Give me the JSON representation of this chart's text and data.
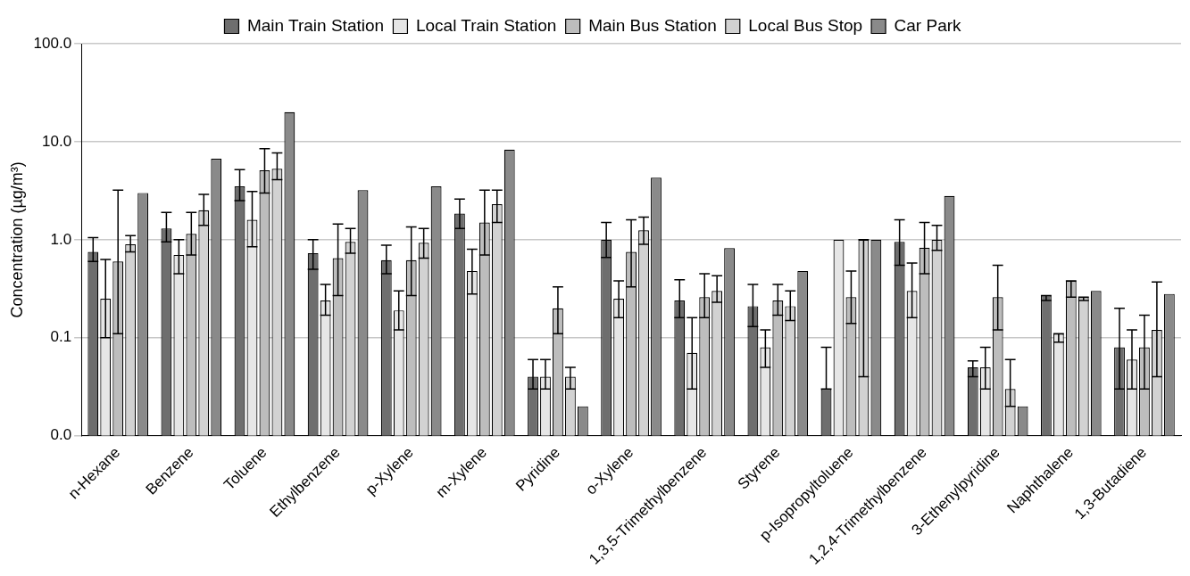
{
  "chart_data": {
    "type": "bar",
    "ylabel": "Concentration (µg/m³)",
    "categories": [
      "n-Hexane",
      "Benzene",
      "Toluene",
      "Ethylbenzene",
      "p-Xylene",
      "m-Xylene",
      "Pyridine",
      "o-Xylene",
      "1,3,5-Trimethylbenzene",
      "Styrene",
      "p-Isopropyltoluene",
      "1,2,4-Trimethylbenzene",
      "3-Ethenylpyridine",
      "Naphthalene",
      "1,3-Butadiene"
    ],
    "series": [
      {
        "name": "Main Train Station",
        "color": "#6e6e6e",
        "values": [
          0.75,
          1.3,
          3.5,
          0.73,
          0.62,
          1.85,
          0.04,
          1.0,
          0.24,
          0.21,
          0.03,
          0.95,
          0.05,
          0.27,
          0.08
        ],
        "errors": [
          [
            0.6,
            1.05
          ],
          [
            0.95,
            1.9
          ],
          [
            2.5,
            5.2
          ],
          [
            0.5,
            1.0
          ],
          [
            0.45,
            0.88
          ],
          [
            1.3,
            2.6
          ],
          [
            0.03,
            0.06
          ],
          [
            0.66,
            1.5
          ],
          [
            0.16,
            0.39
          ],
          [
            0.13,
            0.35
          ],
          [
            0.03,
            0.08
          ],
          [
            0.55,
            1.6
          ],
          [
            0.04,
            0.058
          ],
          [
            0.24,
            0.27
          ],
          [
            0.03,
            0.2
          ]
        ]
      },
      {
        "name": "Local Train Station",
        "color": "#e6e6e6",
        "values": [
          0.25,
          0.7,
          1.6,
          0.24,
          0.19,
          0.48,
          0.04,
          0.25,
          0.07,
          0.08,
          1.0,
          0.3,
          0.05,
          0.11,
          0.06
        ],
        "errors": [
          [
            0.1,
            0.63
          ],
          [
            0.45,
            1.0
          ],
          [
            0.85,
            3.1
          ],
          [
            0.17,
            0.35
          ],
          [
            0.12,
            0.3
          ],
          [
            0.28,
            0.8
          ],
          [
            0.03,
            0.06
          ],
          [
            0.16,
            0.38
          ],
          [
            0.03,
            0.16
          ],
          [
            0.05,
            0.12
          ],
          null,
          [
            0.16,
            0.58
          ],
          [
            0.03,
            0.08
          ],
          [
            0.09,
            0.11
          ],
          [
            0.03,
            0.12
          ]
        ]
      },
      {
        "name": "Main Bus Station",
        "color": "#bdbdbd",
        "values": [
          0.6,
          1.15,
          5.1,
          0.65,
          0.62,
          1.5,
          0.2,
          0.75,
          0.26,
          0.24,
          0.26,
          0.83,
          0.26,
          0.38,
          0.08
        ],
        "errors": [
          [
            0.11,
            3.2
          ],
          [
            0.7,
            1.9
          ],
          [
            3.0,
            8.5
          ],
          [
            0.27,
            1.45
          ],
          [
            0.27,
            1.35
          ],
          [
            0.7,
            3.2
          ],
          [
            0.11,
            0.33
          ],
          [
            0.33,
            1.6
          ],
          [
            0.16,
            0.45
          ],
          [
            0.17,
            0.35
          ],
          [
            0.14,
            0.48
          ],
          [
            0.45,
            1.5
          ],
          [
            0.12,
            0.55
          ],
          [
            0.26,
            0.38
          ],
          [
            0.03,
            0.17
          ]
        ]
      },
      {
        "name": "Local Bus Stop",
        "color": "#d2d2d2",
        "values": [
          0.9,
          2.0,
          5.3,
          0.95,
          0.93,
          2.3,
          0.04,
          1.25,
          0.3,
          0.21,
          1.0,
          1.0,
          0.03,
          0.26,
          0.12
        ],
        "errors": [
          [
            0.75,
            1.1
          ],
          [
            1.4,
            2.9
          ],
          [
            4.1,
            7.7
          ],
          [
            0.73,
            1.3
          ],
          [
            0.65,
            1.3
          ],
          [
            1.5,
            3.2
          ],
          [
            0.03,
            0.05
          ],
          [
            0.9,
            1.7
          ],
          [
            0.23,
            0.43
          ],
          [
            0.15,
            0.3
          ],
          [
            0.04,
            1.0
          ],
          [
            0.78,
            1.4
          ],
          [
            0.02,
            0.06
          ],
          [
            0.24,
            0.26
          ],
          [
            0.04,
            0.37
          ]
        ]
      },
      {
        "name": "Car Park",
        "color": "#8a8a8a",
        "values": [
          3.0,
          6.7,
          20,
          3.2,
          3.5,
          8.3,
          0.02,
          4.3,
          0.82,
          0.48,
          1.0,
          2.8,
          0.02,
          0.3,
          0.28
        ]
      }
    ],
    "log": true,
    "ylim": [
      0.01,
      100
    ],
    "yticks": [
      {
        "value": 0.01,
        "label": "0.0"
      },
      0.1,
      {
        "value": 1,
        "label": "1.0"
      },
      {
        "value": 10,
        "label": "10.0"
      },
      {
        "value": 100,
        "label": "100.0"
      }
    ],
    "grid": "y",
    "legend": "top"
  }
}
